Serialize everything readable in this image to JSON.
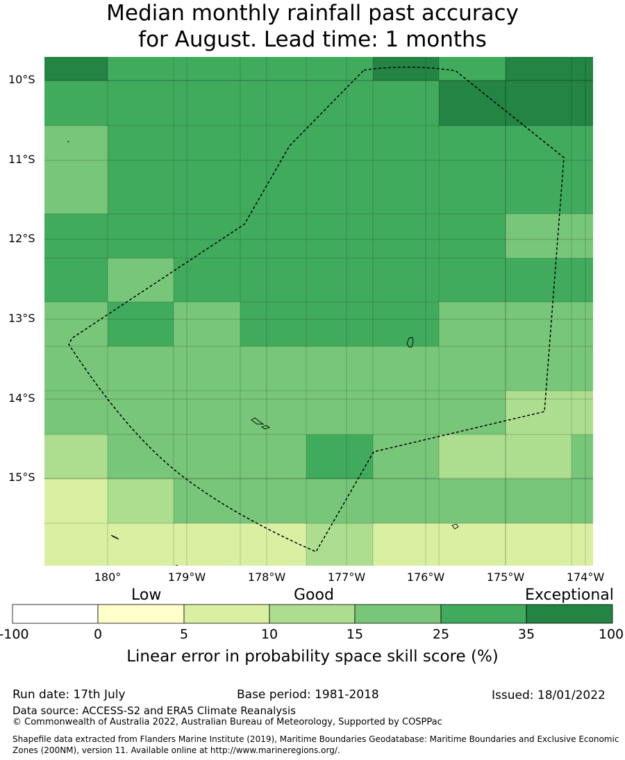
{
  "title": {
    "line1": "Median monthly rainfall past accuracy",
    "line2": "for August. Lead time: 1 months"
  },
  "map": {
    "lat_labels": [
      "10°S",
      "11°S",
      "12°S",
      "13°S",
      "14°S",
      "15°S"
    ],
    "lon_labels": [
      "180°",
      "179°W",
      "178°W",
      "177°W",
      "176°W",
      "175°W",
      "174°W"
    ],
    "cell_classes_rows": [
      [
        "c35",
        "c25",
        "c25",
        "c25",
        "c25",
        "c35",
        "c25",
        "c35"
      ],
      [
        "c25",
        "c25",
        "c25",
        "c25",
        "c25",
        "c25",
        "c35",
        "c35"
      ],
      [
        "c15",
        "c25",
        "c25",
        "c25",
        "c25",
        "c25",
        "c25",
        "c25"
      ],
      [
        "c15",
        "c25",
        "c25",
        "c25",
        "c25",
        "c25",
        "c25",
        "c25"
      ],
      [
        "c25",
        "c25",
        "c25",
        "c25",
        "c25",
        "c25",
        "c25",
        "c15"
      ],
      [
        "c25",
        "c15",
        "c25",
        "c25",
        "c25",
        "c25",
        "c25",
        "c25"
      ],
      [
        "c15",
        "c25",
        "c15",
        "c25",
        "c25",
        "c25",
        "c15",
        "c15"
      ],
      [
        "c15",
        "c15",
        "c15",
        "c15",
        "c15",
        "c15",
        "c15",
        "c15"
      ],
      [
        "c15",
        "c15",
        "c15",
        "c15",
        "c15",
        "c15",
        "c15",
        "c10"
      ],
      [
        "c10",
        "c15",
        "c15",
        "c15",
        "c25",
        "c15",
        "c10",
        "c15"
      ],
      [
        "c5",
        "c10",
        "c15",
        "c15",
        "c15",
        "c15",
        "c15",
        "c15"
      ],
      [
        "c5",
        "c5",
        "c5",
        "c5",
        "c10",
        "c5",
        "c5",
        "c5"
      ]
    ]
  },
  "legend": {
    "low": "Low",
    "good": "Good",
    "exceptional": "Exceptional",
    "ticks": [
      "-100",
      "0",
      "5",
      "10",
      "15",
      "25",
      "35",
      "100"
    ],
    "colors": [
      "#ffffff",
      "#ffffcc",
      "#d9f0a3",
      "#addd8e",
      "#78c679",
      "#41ab5d",
      "#238443"
    ],
    "axis_title": "Linear error in probability space skill score (%)"
  },
  "footer": {
    "run_date": "Run date: 17th July",
    "base_period": "Base period: 1981-2018",
    "issued": "Issued: 18/01/2022",
    "data_source": "Data source: ACCESS-S2 and ERA5 Climate Reanalysis",
    "copyright": "© Commonwealth of Australia 2022, Australian Bureau of Meteorology, Supported by COSPPac",
    "shapefile": "Shapefile data extracted from Flanders Marine Institute (2019), Maritime Boundaries Geodatabase: Maritime Boundaries and Exclusive Economic Zones (200NM), version 11. Available online at http://www.marineregions.org/."
  }
}
